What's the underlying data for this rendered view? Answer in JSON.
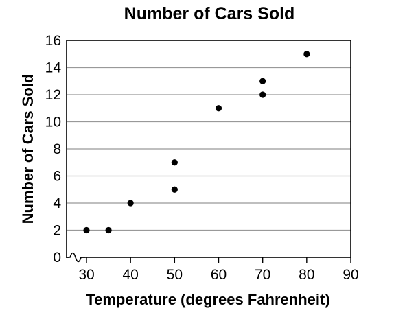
{
  "chart_data": {
    "type": "scatter",
    "title": "Number of Cars Sold",
    "xlabel": "Temperature (degrees Fahrenheit)",
    "ylabel": "Number of Cars Sold",
    "xlim": [
      30,
      90
    ],
    "ylim": [
      0,
      16
    ],
    "x_axis_break": true,
    "grid": "horizontal",
    "xticks": [
      "30",
      "40",
      "50",
      "60",
      "70",
      "80",
      "90"
    ],
    "yticks": [
      "0",
      "2",
      "4",
      "6",
      "8",
      "10",
      "12",
      "14",
      "16"
    ],
    "points": [
      {
        "x": 30,
        "y": 2
      },
      {
        "x": 35,
        "y": 2
      },
      {
        "x": 40,
        "y": 4
      },
      {
        "x": 50,
        "y": 5
      },
      {
        "x": 50,
        "y": 7
      },
      {
        "x": 60,
        "y": 11
      },
      {
        "x": 70,
        "y": 12
      },
      {
        "x": 70,
        "y": 13
      },
      {
        "x": 80,
        "y": 15
      }
    ],
    "colors": {
      "points": "#000000",
      "grid": "#999999",
      "axes": "#000000"
    }
  }
}
